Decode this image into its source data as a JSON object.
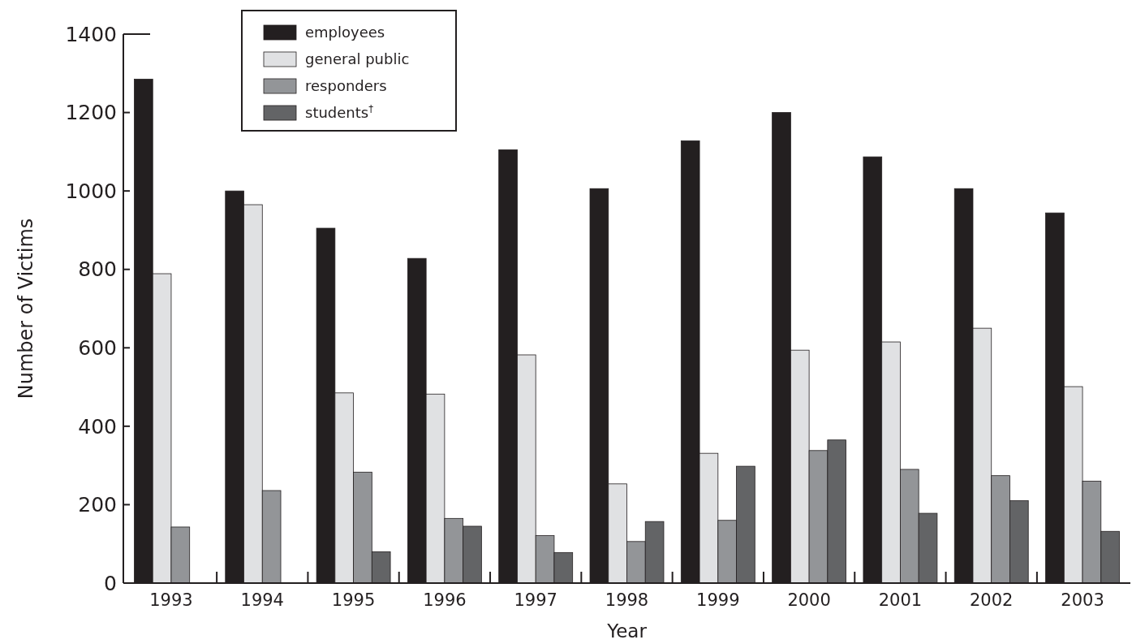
{
  "chart_data": {
    "type": "bar",
    "xlabel": "Year",
    "ylabel": "Number of Victims",
    "categories": [
      "1993",
      "1994",
      "1995",
      "1996",
      "1997",
      "1998",
      "1999",
      "2000",
      "2001",
      "2002",
      "2003"
    ],
    "series": [
      {
        "name": "employees",
        "color": "#231f20",
        "values": [
          1285,
          1000,
          905,
          828,
          1105,
          1006,
          1128,
          1200,
          1087,
          1006,
          944
        ]
      },
      {
        "name": "general public",
        "color": "#e0e1e3",
        "values": [
          789,
          965,
          485,
          482,
          582,
          253,
          331,
          594,
          615,
          650,
          501
        ]
      },
      {
        "name": "responders",
        "color": "#939598",
        "values": [
          143,
          236,
          283,
          165,
          121,
          106,
          160,
          338,
          290,
          274,
          260
        ]
      },
      {
        "name": "students$^{†}$",
        "color": "#636466",
        "values": [
          null,
          null,
          80,
          145,
          78,
          157,
          298,
          365,
          178,
          210,
          132
        ]
      }
    ],
    "ylim": [
      0,
      1400
    ],
    "yticks": [
      0,
      200,
      400,
      600,
      800,
      1000,
      1200,
      1400
    ],
    "grid": false,
    "legend": "top left"
  }
}
